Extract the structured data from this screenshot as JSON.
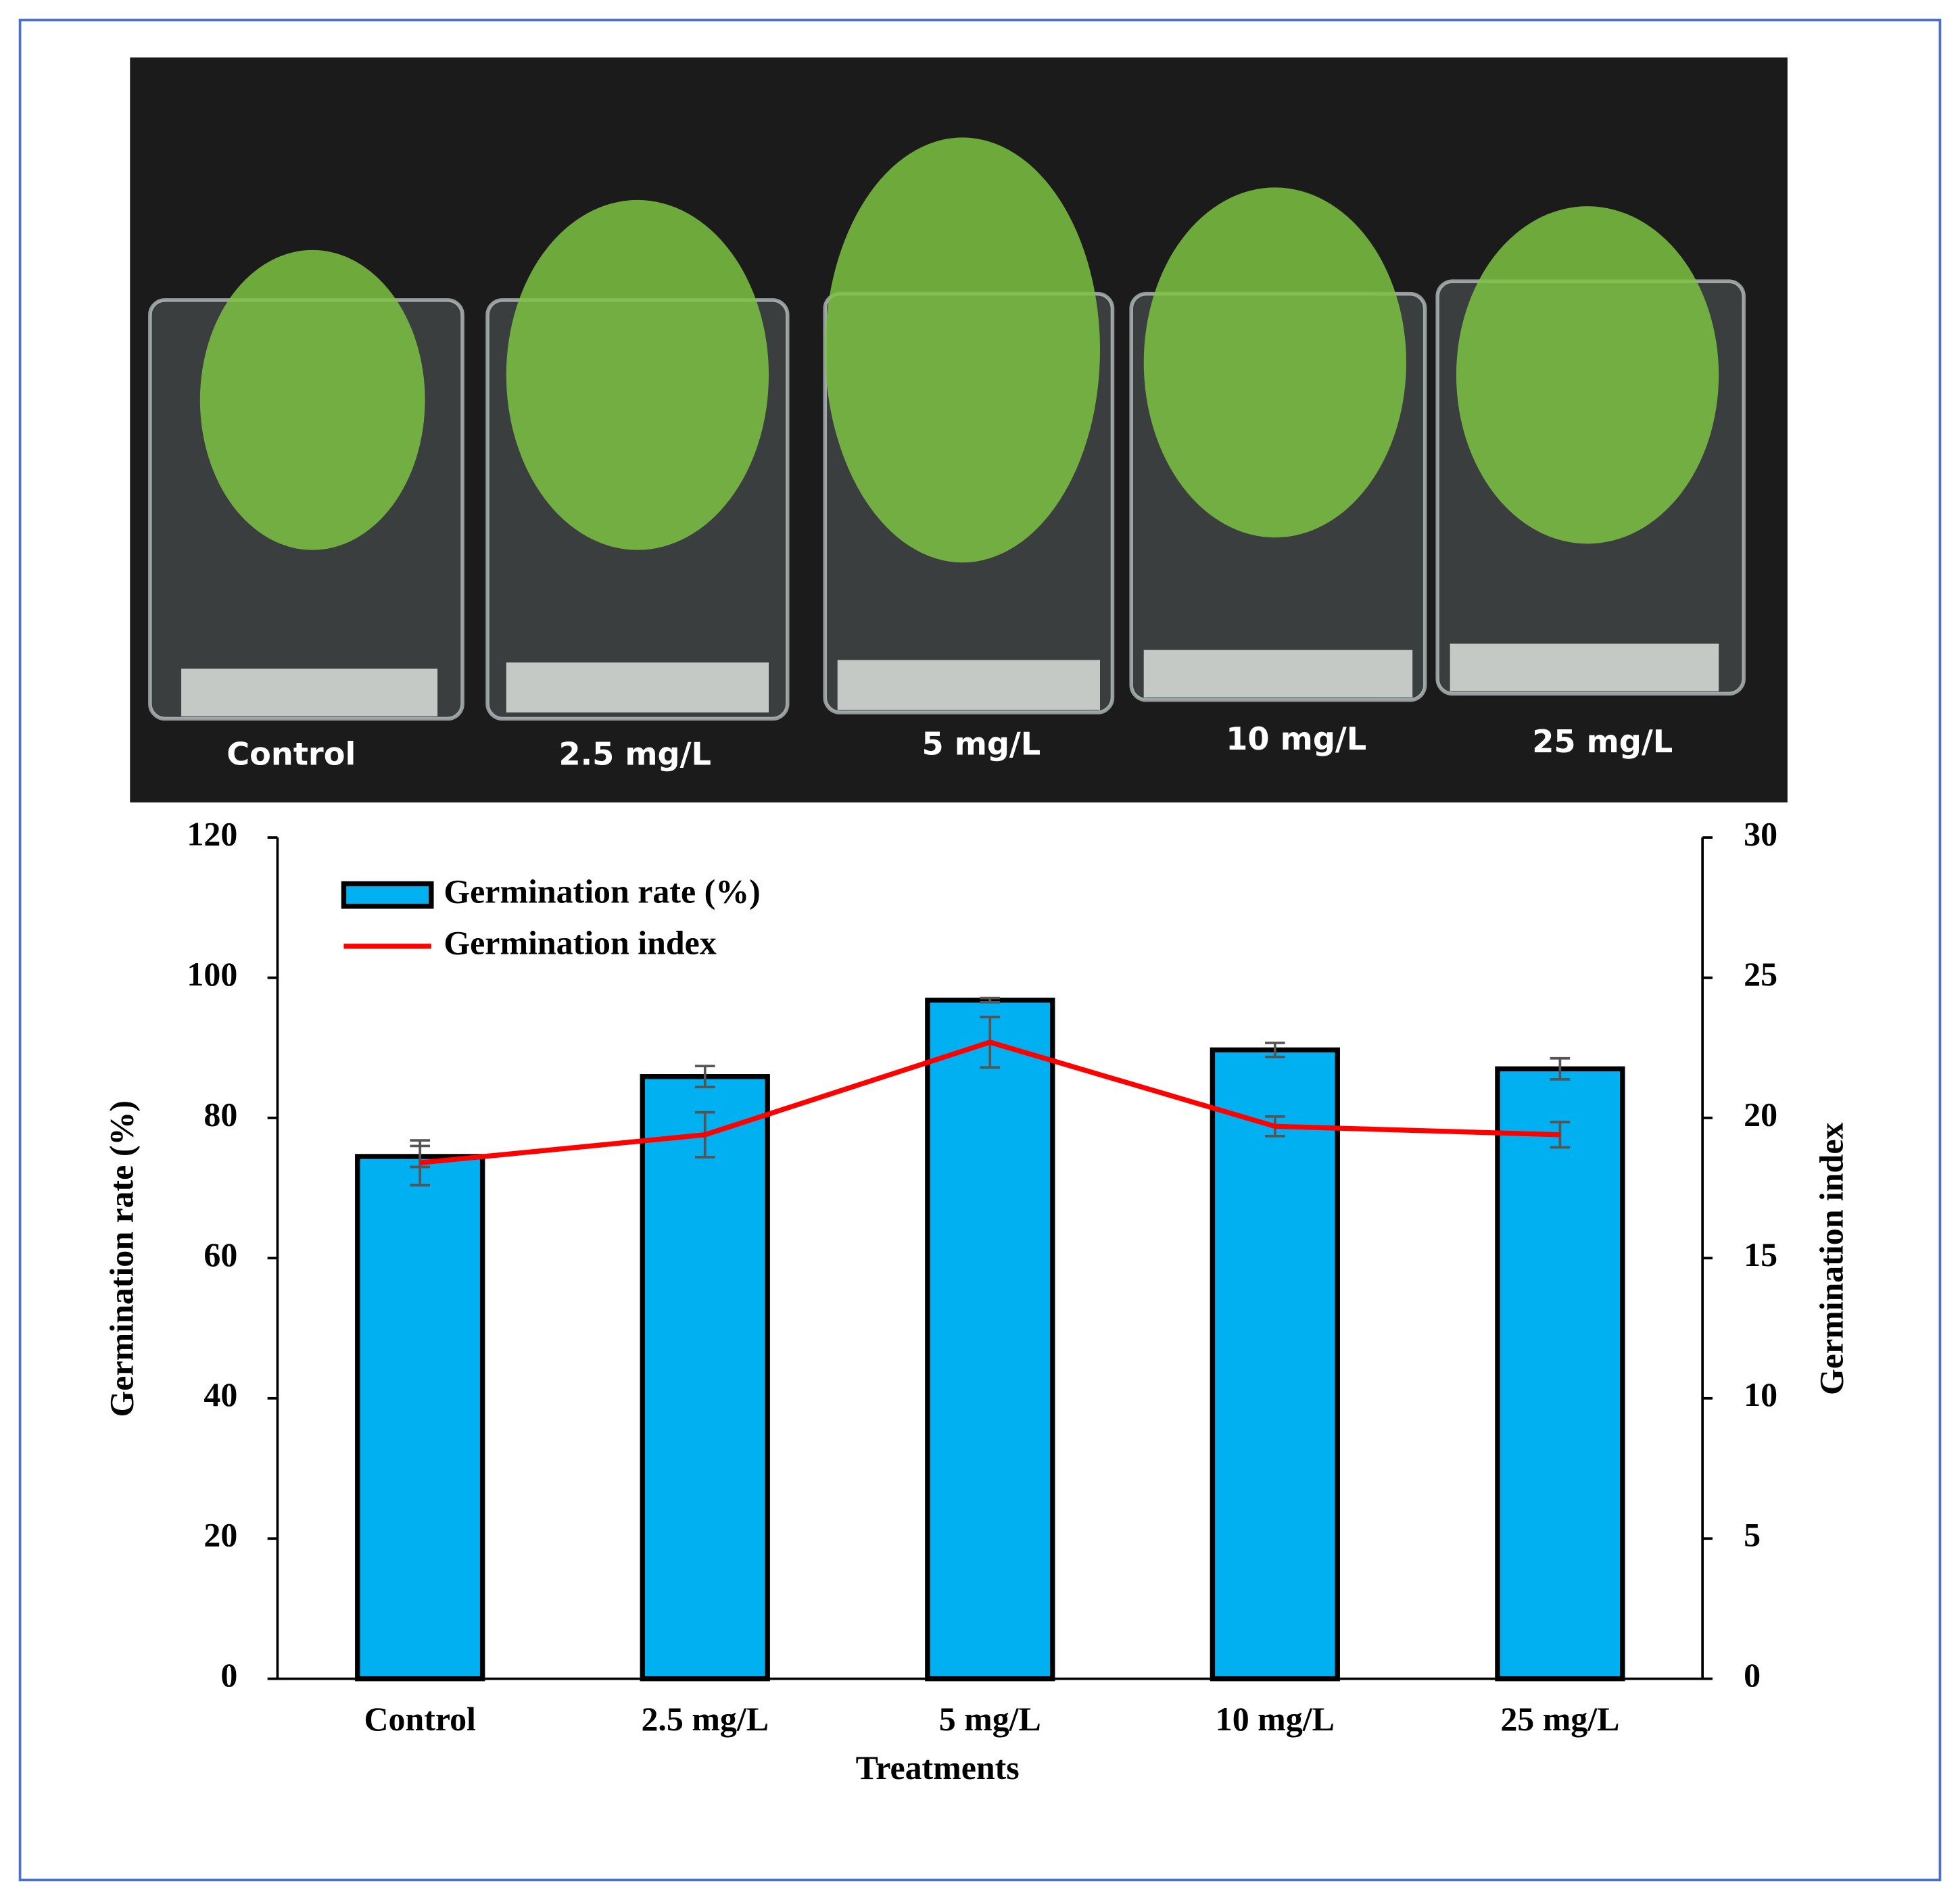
{
  "photo": {
    "labels": [
      "Control",
      "2.5 mg/L",
      "5 mg/L",
      "10 mg/L",
      "25 mg/L"
    ]
  },
  "chart_data": {
    "type": "bar",
    "x_label": "Treatments",
    "y_label": "Germination rate (%)",
    "y2_label": "Germination index",
    "categories": [
      "Control",
      "2.5 mg/L",
      "5 mg/L",
      "10 mg/L",
      "25 mg/L"
    ],
    "series": [
      {
        "name": "Germination rate (%)",
        "type": "bar",
        "color": "#00b0f0",
        "values": [
          74.5,
          85.9,
          96.8,
          89.7,
          87.0
        ],
        "errors": [
          1.5,
          1.5,
          0.3,
          1.0,
          1.5
        ]
      },
      {
        "name": "Germination index",
        "type": "line",
        "axis": "y2",
        "color": "#ff0000",
        "values": [
          18.4,
          19.4,
          22.7,
          19.7,
          19.4
        ],
        "errors": [
          0.8,
          0.8,
          0.9,
          0.35,
          0.45
        ]
      }
    ],
    "ylim": [
      0,
      120
    ],
    "yticks": [
      0,
      20,
      40,
      60,
      80,
      100,
      120
    ],
    "y2lim": [
      0,
      30
    ],
    "y2ticks": [
      0,
      5,
      10,
      15,
      20,
      25,
      30
    ],
    "legend": "upper-left",
    "grid": false
  }
}
